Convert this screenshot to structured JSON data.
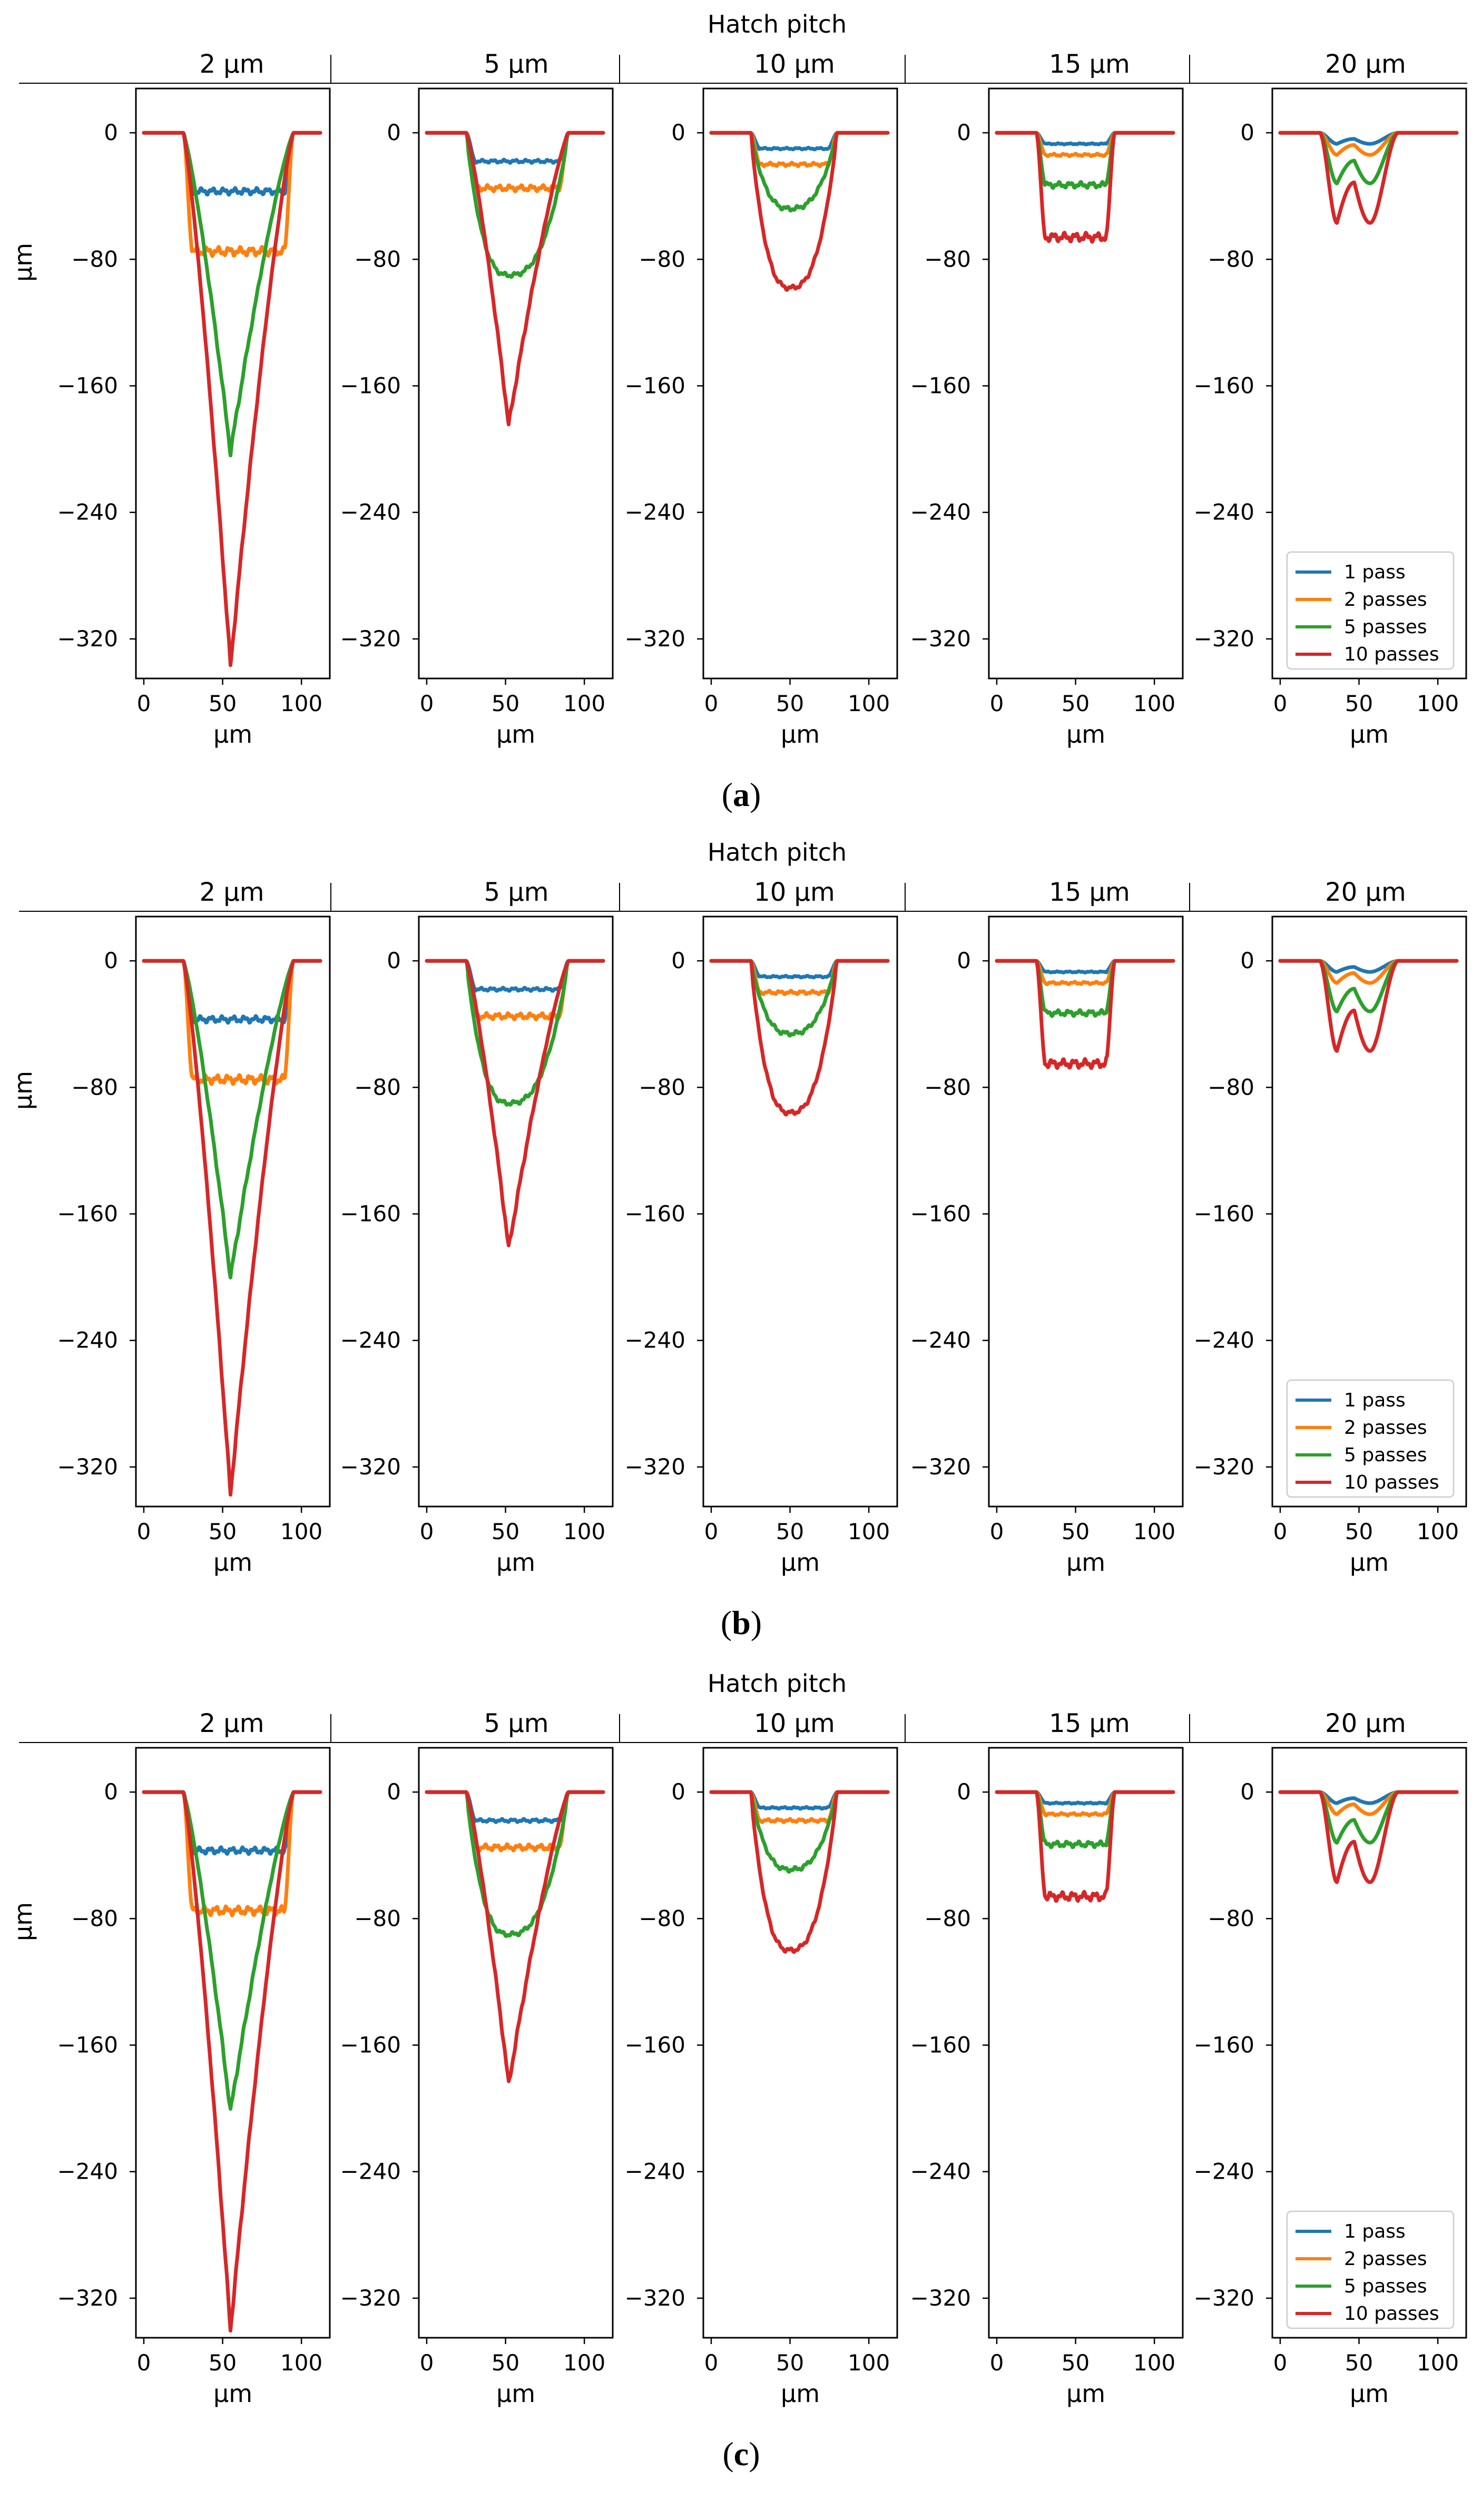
{
  "figure": {
    "group_title": "Hatch pitch",
    "pitch_labels": [
      "2 µm",
      "5 µm",
      "10 µm",
      "15 µm",
      "20 µm"
    ],
    "x_axis_label": "µm",
    "y_axis_label": "µm",
    "x_ticks": [
      "0",
      "50",
      "100"
    ],
    "y_ticks": [
      "0",
      "−80",
      "−160",
      "−240",
      "−320"
    ],
    "legend_entries": [
      "1 pass",
      "2 passes",
      "5 passes",
      "10 passes"
    ],
    "series_colors": {
      "1 pass": "#1f77b4",
      "2 passes": "#ff7f0e",
      "5 passes": "#2ca02c",
      "10 passes": "#d62728"
    },
    "panels": [
      {
        "id": "a",
        "open": "(",
        "letter": "a",
        "close": ")"
      },
      {
        "id": "b",
        "open": "(",
        "letter": "b",
        "close": ")"
      },
      {
        "id": "c",
        "open": "(",
        "letter": "c",
        "close": ")"
      }
    ]
  },
  "chart_data": [
    {
      "panel": "a",
      "type": "line",
      "title": "Hatch pitch",
      "xlabel": "µm",
      "ylabel": "µm",
      "xlim": [
        -5,
        118
      ],
      "ylim": [
        -345,
        28
      ],
      "subplots": [
        {
          "pitch": "2 µm",
          "x_start": 25,
          "x_end": 95,
          "x_min": 55,
          "series": [
            {
              "name": "1 pass",
              "min_depth": -37,
              "shape": "flat"
            },
            {
              "name": "2 passes",
              "min_depth": -75,
              "shape": "flat"
            },
            {
              "name": "5 passes",
              "min_depth": -202,
              "shape": "v"
            },
            {
              "name": "10 passes",
              "min_depth": -337,
              "shape": "v"
            }
          ]
        },
        {
          "pitch": "5 µm",
          "x_start": 25,
          "x_end": 90,
          "x_min": 52,
          "series": [
            {
              "name": "1 pass",
              "min_depth": -18,
              "shape": "flat"
            },
            {
              "name": "2 passes",
              "min_depth": -35,
              "shape": "flat"
            },
            {
              "name": "5 passes",
              "min_depth": -90,
              "shape": "u"
            },
            {
              "name": "10 passes",
              "min_depth": -185,
              "shape": "v"
            }
          ]
        },
        {
          "pitch": "10 µm",
          "x_start": 25,
          "x_end": 80,
          "x_min": 50,
          "series": [
            {
              "name": "1 pass",
              "min_depth": -10,
              "shape": "flat"
            },
            {
              "name": "2 passes",
              "min_depth": -20,
              "shape": "flat"
            },
            {
              "name": "5 passes",
              "min_depth": -48,
              "shape": "u"
            },
            {
              "name": "10 passes",
              "min_depth": -98,
              "shape": "u"
            }
          ]
        },
        {
          "pitch": "15 µm",
          "x_start": 25,
          "x_end": 75,
          "x_min": 50,
          "series": [
            {
              "name": "1 pass",
              "min_depth": -7,
              "shape": "flat"
            },
            {
              "name": "2 passes",
              "min_depth": -14,
              "shape": "flat"
            },
            {
              "name": "5 passes",
              "min_depth": -33,
              "shape": "flat"
            },
            {
              "name": "10 passes",
              "min_depth": -66,
              "shape": "flat"
            }
          ]
        },
        {
          "pitch": "20 µm",
          "x_start": 25,
          "x_end": 75,
          "x_min": 48,
          "series": [
            {
              "name": "1 pass",
              "min_depth": -7,
              "shape": "w"
            },
            {
              "name": "2 passes",
              "min_depth": -14,
              "shape": "w"
            },
            {
              "name": "5 passes",
              "min_depth": -32,
              "shape": "w"
            },
            {
              "name": "10 passes",
              "min_depth": -57,
              "shape": "w"
            }
          ]
        }
      ]
    },
    {
      "panel": "b",
      "type": "line",
      "title": "Hatch pitch",
      "xlabel": "µm",
      "ylabel": "µm",
      "xlim": [
        -5,
        118
      ],
      "ylim": [
        -345,
        28
      ],
      "subplots": [
        {
          "pitch": "2 µm",
          "x_start": 25,
          "x_end": 95,
          "x_min": 55,
          "series": [
            {
              "name": "1 pass",
              "min_depth": -37,
              "shape": "flat"
            },
            {
              "name": "2 passes",
              "min_depth": -75,
              "shape": "flat"
            },
            {
              "name": "5 passes",
              "min_depth": -200,
              "shape": "v"
            },
            {
              "name": "10 passes",
              "min_depth": -337,
              "shape": "v"
            }
          ]
        },
        {
          "pitch": "5 µm",
          "x_start": 25,
          "x_end": 90,
          "x_min": 52,
          "series": [
            {
              "name": "1 pass",
              "min_depth": -18,
              "shape": "flat"
            },
            {
              "name": "2 passes",
              "min_depth": -35,
              "shape": "flat"
            },
            {
              "name": "5 passes",
              "min_depth": -90,
              "shape": "u"
            },
            {
              "name": "10 passes",
              "min_depth": -182,
              "shape": "v"
            }
          ]
        },
        {
          "pitch": "10 µm",
          "x_start": 25,
          "x_end": 80,
          "x_min": 50,
          "series": [
            {
              "name": "1 pass",
              "min_depth": -10,
              "shape": "flat"
            },
            {
              "name": "2 passes",
              "min_depth": -20,
              "shape": "flat"
            },
            {
              "name": "5 passes",
              "min_depth": -46,
              "shape": "u"
            },
            {
              "name": "10 passes",
              "min_depth": -96,
              "shape": "u"
            }
          ]
        },
        {
          "pitch": "15 µm",
          "x_start": 25,
          "x_end": 75,
          "x_min": 50,
          "series": [
            {
              "name": "1 pass",
              "min_depth": -7,
              "shape": "flat"
            },
            {
              "name": "2 passes",
              "min_depth": -14,
              "shape": "flat"
            },
            {
              "name": "5 passes",
              "min_depth": -33,
              "shape": "flat"
            },
            {
              "name": "10 passes",
              "min_depth": -65,
              "shape": "flat"
            }
          ]
        },
        {
          "pitch": "20 µm",
          "x_start": 25,
          "x_end": 75,
          "x_min": 48,
          "series": [
            {
              "name": "1 pass",
              "min_depth": -7,
              "shape": "w"
            },
            {
              "name": "2 passes",
              "min_depth": -14,
              "shape": "w"
            },
            {
              "name": "5 passes",
              "min_depth": -32,
              "shape": "w"
            },
            {
              "name": "10 passes",
              "min_depth": -57,
              "shape": "w"
            }
          ]
        }
      ]
    },
    {
      "panel": "c",
      "type": "line",
      "title": "Hatch pitch",
      "xlabel": "µm",
      "ylabel": "µm",
      "xlim": [
        -5,
        118
      ],
      "ylim": [
        -345,
        28
      ],
      "subplots": [
        {
          "pitch": "2 µm",
          "x_start": 25,
          "x_end": 95,
          "x_min": 55,
          "series": [
            {
              "name": "1 pass",
              "min_depth": -37,
              "shape": "flat"
            },
            {
              "name": "2 passes",
              "min_depth": -75,
              "shape": "flat"
            },
            {
              "name": "5 passes",
              "min_depth": -202,
              "shape": "v"
            },
            {
              "name": "10 passes",
              "min_depth": -340,
              "shape": "v"
            }
          ]
        },
        {
          "pitch": "5 µm",
          "x_start": 25,
          "x_end": 90,
          "x_min": 52,
          "series": [
            {
              "name": "1 pass",
              "min_depth": -18,
              "shape": "flat"
            },
            {
              "name": "2 passes",
              "min_depth": -35,
              "shape": "flat"
            },
            {
              "name": "5 passes",
              "min_depth": -90,
              "shape": "u"
            },
            {
              "name": "10 passes",
              "min_depth": -185,
              "shape": "v"
            }
          ]
        },
        {
          "pitch": "10 µm",
          "x_start": 25,
          "x_end": 80,
          "x_min": 50,
          "series": [
            {
              "name": "1 pass",
              "min_depth": -10,
              "shape": "flat"
            },
            {
              "name": "2 passes",
              "min_depth": -18,
              "shape": "flat"
            },
            {
              "name": "5 passes",
              "min_depth": -49,
              "shape": "u"
            },
            {
              "name": "10 passes",
              "min_depth": -100,
              "shape": "u"
            }
          ]
        },
        {
          "pitch": "15 µm",
          "x_start": 25,
          "x_end": 75,
          "x_min": 50,
          "series": [
            {
              "name": "1 pass",
              "min_depth": -7,
              "shape": "flat"
            },
            {
              "name": "2 passes",
              "min_depth": -14,
              "shape": "flat"
            },
            {
              "name": "5 passes",
              "min_depth": -33,
              "shape": "flat"
            },
            {
              "name": "10 passes",
              "min_depth": -66,
              "shape": "flat"
            }
          ]
        },
        {
          "pitch": "20 µm",
          "x_start": 25,
          "x_end": 75,
          "x_min": 48,
          "series": [
            {
              "name": "1 pass",
              "min_depth": -7,
              "shape": "w"
            },
            {
              "name": "2 passes",
              "min_depth": -14,
              "shape": "w"
            },
            {
              "name": "5 passes",
              "min_depth": -32,
              "shape": "w"
            },
            {
              "name": "10 passes",
              "min_depth": -57,
              "shape": "w"
            }
          ]
        }
      ]
    }
  ]
}
